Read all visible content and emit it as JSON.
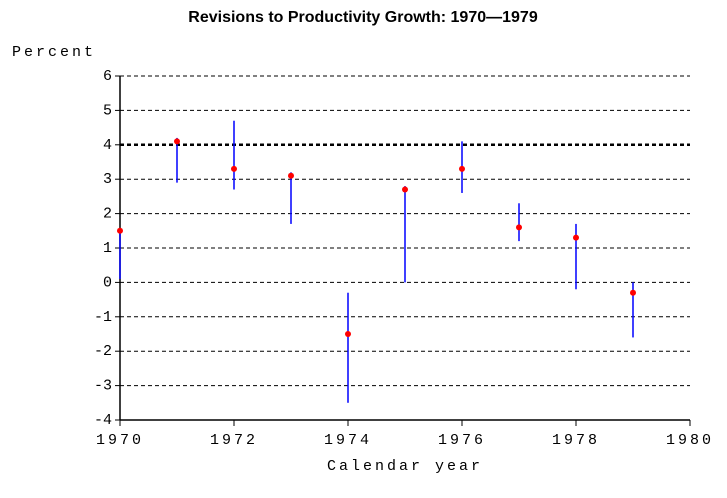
{
  "chart_data": {
    "type": "range",
    "title": "Revisions to Productivity Growth: 1970—1979",
    "y_label": "Percent",
    "x_label": "Calendar year",
    "x": [
      1970,
      1971,
      1972,
      1973,
      1974,
      1975,
      1976,
      1977,
      1978,
      1979
    ],
    "values": [
      1.5,
      4.1,
      3.3,
      3.1,
      -1.5,
      2.7,
      3.3,
      1.6,
      1.3,
      -0.3
    ],
    "low": [
      0.1,
      2.9,
      2.7,
      1.7,
      -3.5,
      0,
      2.6,
      1.2,
      -0.2,
      -1.6
    ],
    "high": [
      1.5,
      4.2,
      4.7,
      3.2,
      -0.3,
      2.8,
      4.1,
      2.3,
      1.7,
      0
    ],
    "dot_color": "#ff0000",
    "line_color": "#0000ff",
    "xlim": [
      1970,
      1980
    ],
    "xticks": [
      1970,
      1972,
      1974,
      1976,
      1978,
      1980
    ],
    "ylim": [
      -4,
      6
    ],
    "yticks": [
      -4,
      -3,
      -2,
      -1,
      0,
      1,
      2,
      3,
      4,
      5,
      6
    ],
    "grid": true,
    "highlight_y": 4
  }
}
